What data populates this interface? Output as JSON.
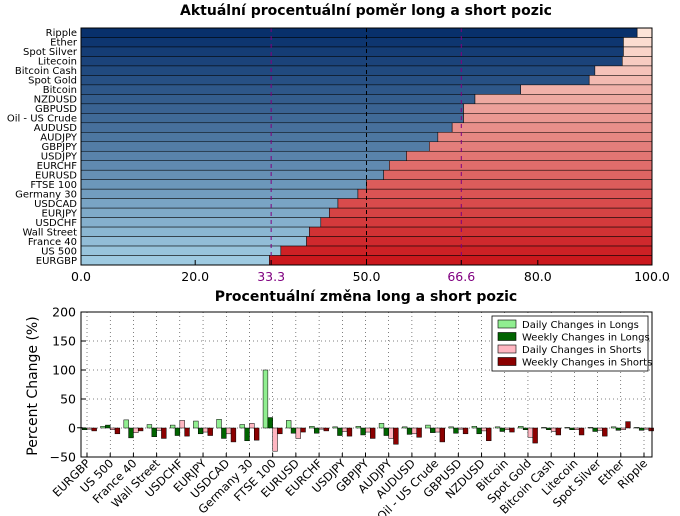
{
  "chart_data": [
    {
      "type": "bar",
      "orientation": "horizontal",
      "stacked": true,
      "title": "Aktuální procentuální poměr long a short pozic",
      "categories": [
        "Ripple",
        "Ether",
        "Spot Silver",
        "Litecoin",
        "Bitcoin Cash",
        "Spot Gold",
        "Bitcoin",
        "NZDUSD",
        "GBPUSD",
        "Oil - US Crude",
        "AUDUSD",
        "AUDJPY",
        "GBPJPY",
        "USDJPY",
        "EURCHF",
        "EURUSD",
        "FTSE 100",
        "Germany 30",
        "USDCAD",
        "EURJPY",
        "USDCHF",
        "Wall Street",
        "France 40",
        "US 500",
        "EURGBP"
      ],
      "series": [
        {
          "values": [
            97.4,
            95.0,
            95.0,
            94.8,
            90.0,
            89.0,
            77.0,
            69.0,
            67.0,
            67.0,
            65.0,
            62.5,
            61.0,
            57.0,
            54.0,
            53.0,
            50.0,
            48.5,
            45.0,
            43.5,
            42.0,
            40.0,
            39.5,
            35.0,
            33.0
          ]
        },
        {
          "values": [
            2.6,
            5.0,
            5.0,
            5.2,
            10.0,
            11.0,
            23.0,
            31.0,
            33.0,
            33.0,
            35.0,
            37.5,
            39.0,
            43.0,
            46.0,
            47.0,
            50.0,
            51.5,
            55.0,
            56.5,
            58.0,
            60.0,
            60.5,
            65.0,
            67.0
          ]
        }
      ],
      "xlim": [
        0,
        100
      ],
      "xticks": [
        "0.0",
        "20.0",
        "33.3",
        "50.0",
        "66.6",
        "80.0",
        "100.0"
      ],
      "xtick_values": [
        0,
        20,
        33.3,
        50,
        66.6,
        80,
        100
      ],
      "reference_lines": [
        33.3,
        50,
        66.6
      ],
      "highlight_ticks": [
        "33.3",
        "66.6"
      ],
      "colors": {
        "long": "#2166ac",
        "short": "#d6604d",
        "ref_line": "#800080",
        "mid_line": "#000000"
      }
    },
    {
      "type": "bar",
      "title": "Procentuální změna long a short pozic",
      "ylabel": "Percent Change (%)",
      "ylim": [
        -50,
        200
      ],
      "yticks": [
        "−50",
        "0",
        "50",
        "100",
        "150",
        "200"
      ],
      "ytick_values": [
        -50,
        0,
        50,
        100,
        150,
        200
      ],
      "grid": true,
      "legend": "top-right",
      "categories": [
        "EURGBP",
        "US 500",
        "France 40",
        "Wall Street",
        "USDCHF",
        "EURJPY",
        "USDCAD",
        "Germany 30",
        "FTSE 100",
        "EURUSD",
        "EURCHF",
        "USDJPY",
        "GBPJPY",
        "AUDJPY",
        "AUDUSD",
        "Oil - US Crude",
        "GBPUSD",
        "NZDUSD",
        "Bitcoin",
        "Spot Gold",
        "Bitcoin Cash",
        "Litecoin",
        "Spot Silver",
        "Ether",
        "Ripple"
      ],
      "series": [
        {
          "name": "Daily Changes in Longs",
          "color": "#90ee90",
          "values": [
            1,
            3,
            14,
            6,
            5,
            12,
            15,
            6,
            100,
            13,
            3,
            2,
            3,
            8,
            2,
            5,
            2,
            3,
            2,
            3,
            1,
            1,
            1,
            2,
            1
          ]
        },
        {
          "name": "Weekly Changes in Longs",
          "color": "#006400",
          "values": [
            -3,
            5,
            -17,
            -15,
            -13,
            -10,
            -18,
            -22,
            18,
            -9,
            -9,
            -13,
            -12,
            -13,
            -11,
            -8,
            -9,
            -10,
            -6,
            -3,
            -3,
            -3,
            -6,
            -4,
            -4
          ]
        },
        {
          "name": "Daily Changes in Shorts",
          "color": "#ffb6c1",
          "values": [
            -2,
            -3,
            -8,
            -4,
            13,
            -7,
            -10,
            8,
            -40,
            -18,
            -2,
            -6,
            -7,
            -18,
            -10,
            -7,
            -2,
            -5,
            -3,
            -16,
            -6,
            -3,
            -4,
            -3,
            -2
          ]
        },
        {
          "name": "Weekly Changes in Shorts",
          "color": "#8b0000",
          "values": [
            -5,
            -10,
            -5,
            -18,
            -14,
            -13,
            -24,
            -21,
            -10,
            -7,
            -5,
            -14,
            -18,
            -28,
            -16,
            -24,
            -10,
            -22,
            -7,
            -26,
            -12,
            -12,
            -14,
            11,
            -5
          ]
        }
      ]
    }
  ]
}
